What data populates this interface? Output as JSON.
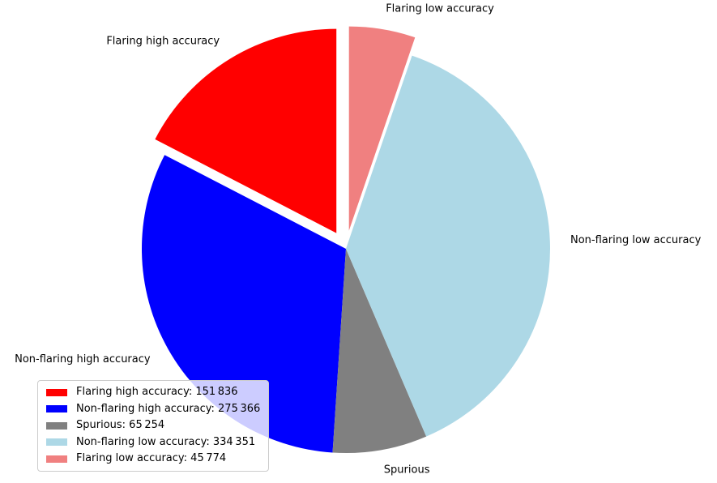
{
  "chart_data": {
    "type": "pie",
    "slices": [
      {
        "label": "Flaring high accuracy",
        "value": 151836,
        "color": "#ff0000",
        "explode": 0.09
      },
      {
        "label": "Non-flaring high accuracy",
        "value": 275366,
        "color": "#0000ff",
        "explode": 0
      },
      {
        "label": "Spurious",
        "value": 65254,
        "color": "#808080",
        "explode": 0
      },
      {
        "label": "Non-flaring low accuracy",
        "value": 334351,
        "color": "#add8e6",
        "explode": 0
      },
      {
        "label": "Flaring low accuracy",
        "value": 45774,
        "color": "#f08080",
        "explode": 0.09
      }
    ],
    "total": 872581,
    "start_angle": 90,
    "direction": "counterclockwise",
    "label_distance": 1.1,
    "legend": {
      "position": "lower left",
      "items": [
        "Flaring high accuracy: 151 836",
        "Non-flaring high accuracy: 275 366",
        "Spurious: 65 254",
        "Non-flaring low accuracy: 334 351",
        "Flaring low accuracy: 45 774"
      ]
    }
  }
}
